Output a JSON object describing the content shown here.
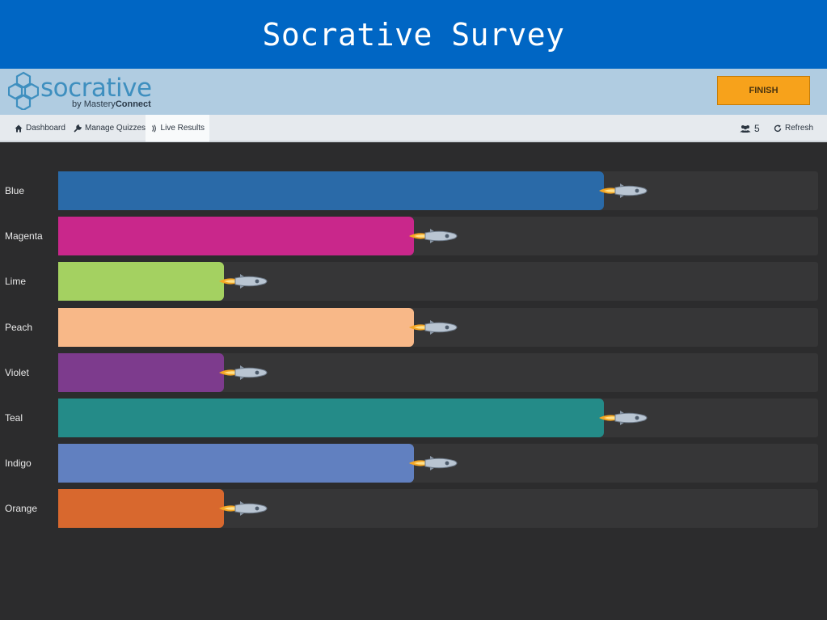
{
  "page_title": "Socrative Survey",
  "app": {
    "logo_word": "socrative",
    "logo_by": "by ",
    "logo_mastery": "Mastery",
    "logo_connect": "Connect",
    "finish_label": "FINISH"
  },
  "nav": {
    "dashboard": "Dashboard",
    "manage_quizzes": "Manage Quizzes",
    "live_results": "Live Results",
    "student_count": "5",
    "refresh": "Refresh"
  },
  "chart_data": {
    "type": "bar",
    "orientation": "horizontal",
    "categories": [
      "Blue",
      "Magenta",
      "Lime",
      "Peach",
      "Violet",
      "Teal",
      "Indigo",
      "Orange"
    ],
    "values": [
      3,
      2,
      1,
      2,
      1,
      3,
      2,
      1
    ],
    "colors": [
      "#2a6aa8",
      "#c9278b",
      "#a4d161",
      "#f8b888",
      "#7d3b8d",
      "#248b88",
      "#6180c0",
      "#d8682e"
    ],
    "max_value": 4
  }
}
